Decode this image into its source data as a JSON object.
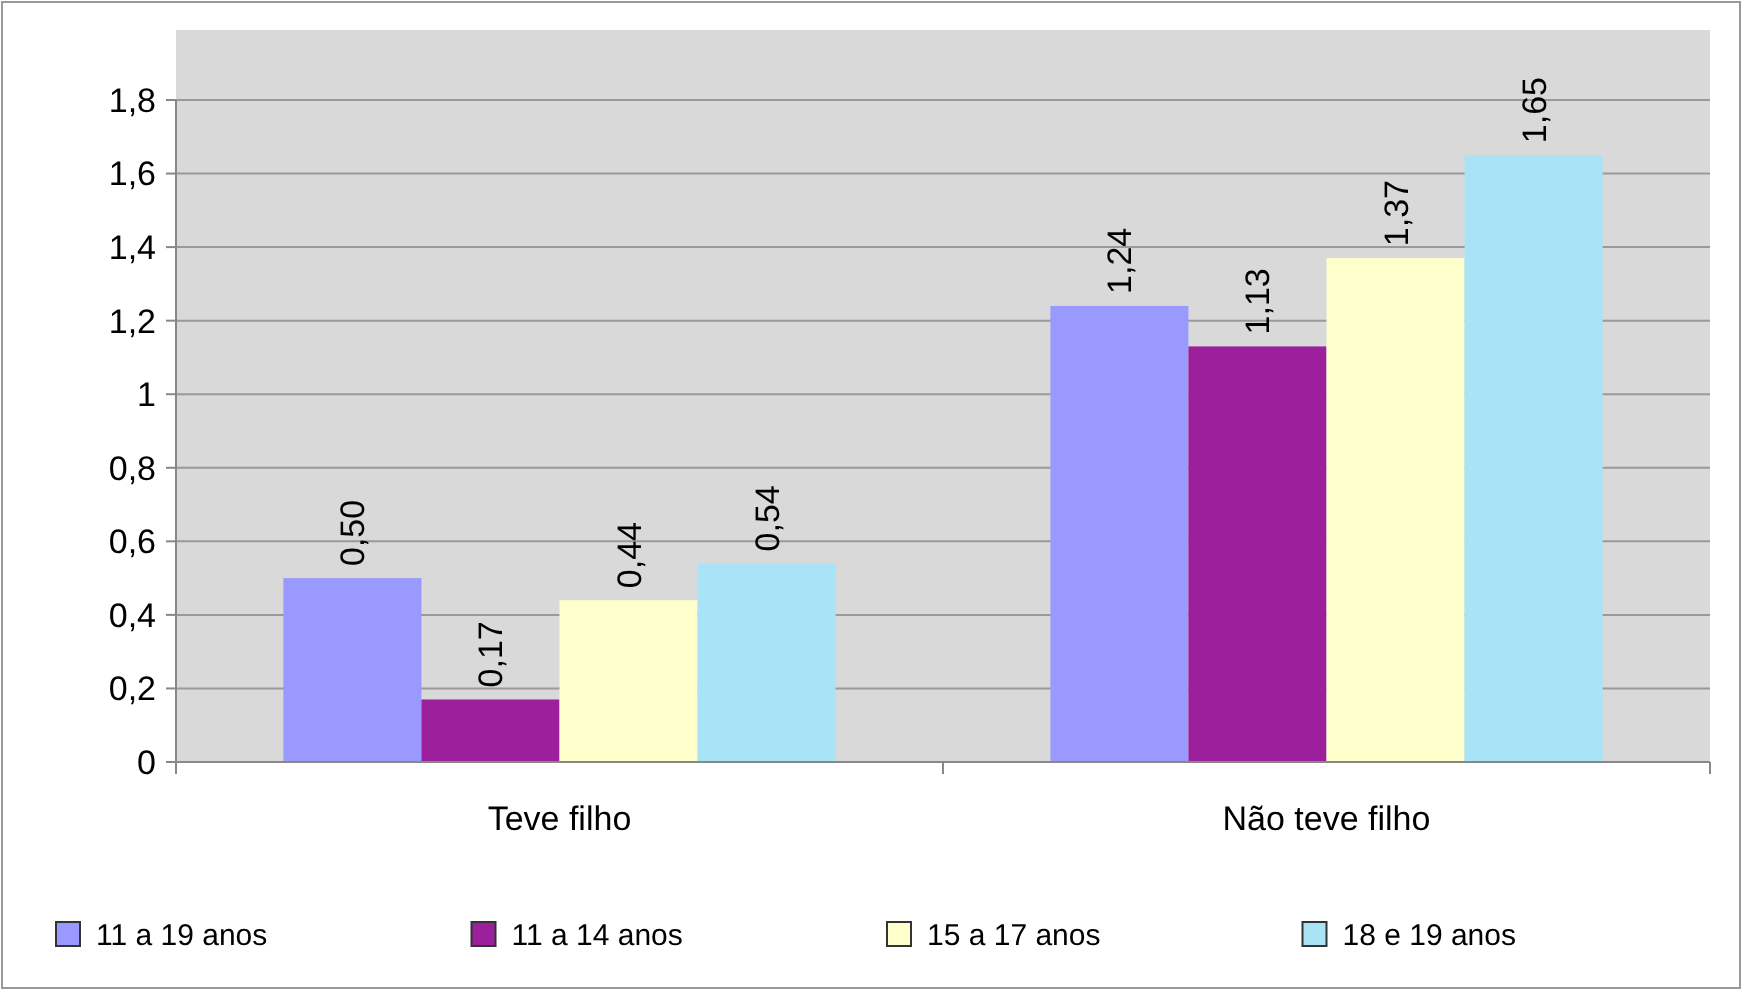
{
  "chart_data": {
    "type": "bar",
    "categories": [
      "Teve filho",
      "Não teve filho"
    ],
    "series": [
      {
        "name": "11 a 19 anos",
        "color": "#9999ff",
        "values": [
          0.5,
          1.24
        ],
        "value_labels": [
          "0,50",
          "1,24"
        ]
      },
      {
        "name": "11 a 14 anos",
        "color": "#9c1f9c",
        "values": [
          0.17,
          1.13
        ],
        "value_labels": [
          "0,17",
          "1,13"
        ]
      },
      {
        "name": "15 a 17 anos",
        "color": "#ffffcc",
        "values": [
          0.44,
          1.37
        ],
        "value_labels": [
          "0,44",
          "1,37"
        ]
      },
      {
        "name": "18 e 19 anos",
        "color": "#a8e4f6",
        "values": [
          0.54,
          1.65
        ],
        "value_labels": [
          "0,54",
          "1,65"
        ]
      }
    ],
    "ylim": [
      0,
      1.8
    ],
    "yticks": [
      {
        "value": 0,
        "label": "0"
      },
      {
        "value": 0.2,
        "label": "0,2"
      },
      {
        "value": 0.4,
        "label": "0,4"
      },
      {
        "value": 0.6,
        "label": "0,6"
      },
      {
        "value": 0.8,
        "label": "0,8"
      },
      {
        "value": 1,
        "label": "1"
      },
      {
        "value": 1.2,
        "label": "1,2"
      },
      {
        "value": 1.4,
        "label": "1,4"
      },
      {
        "value": 1.6,
        "label": "1,6"
      },
      {
        "value": 1.8,
        "label": "1,8"
      }
    ],
    "grid": "y",
    "legend": "bottom"
  }
}
